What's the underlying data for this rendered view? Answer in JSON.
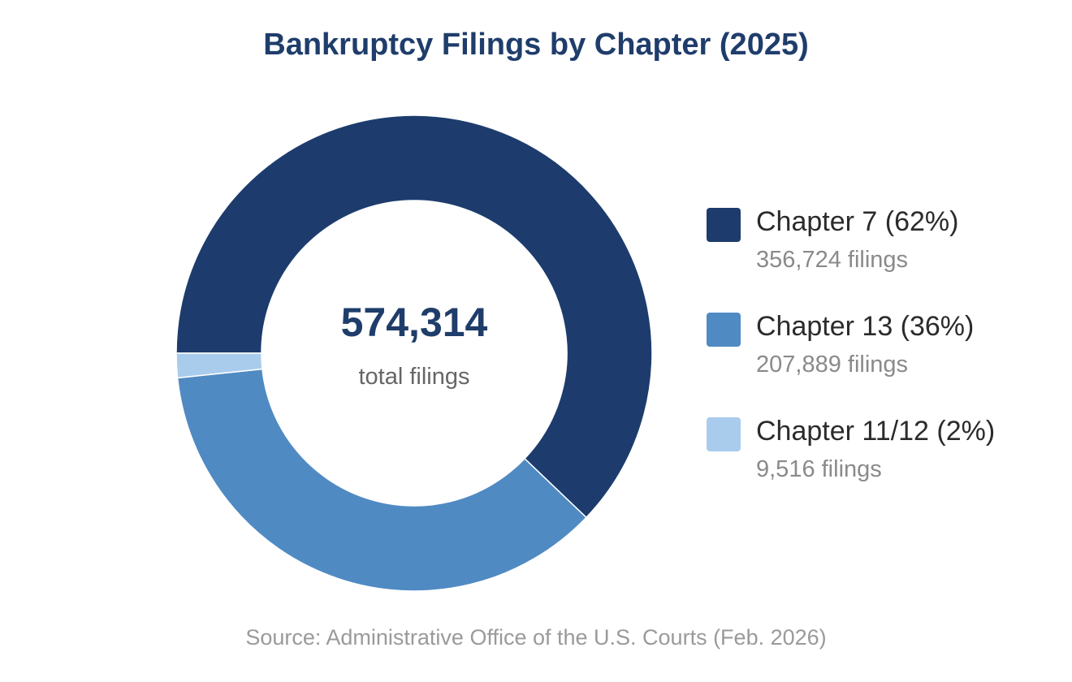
{
  "chart_data": {
    "type": "pie",
    "title": "Bankruptcy Filings by Chapter (2025)",
    "center_value": "574,314",
    "center_label": "total filings",
    "legend_position": "right",
    "slices": [
      {
        "label": "Chapter 7 (62%)",
        "value": 356724,
        "value_label": "356,724 filings",
        "color": "#1d3c6d"
      },
      {
        "label": "Chapter 13 (36%)",
        "value": 207889,
        "value_label": "207,889 filings",
        "color": "#508ac3"
      },
      {
        "label": "Chapter 11/12 (2%)",
        "value": 9516,
        "value_label": "9,516 filings",
        "color": "#a9cced"
      }
    ],
    "source": "Source: Administrative Office of the U.S. Courts (Feb. 2026)"
  }
}
